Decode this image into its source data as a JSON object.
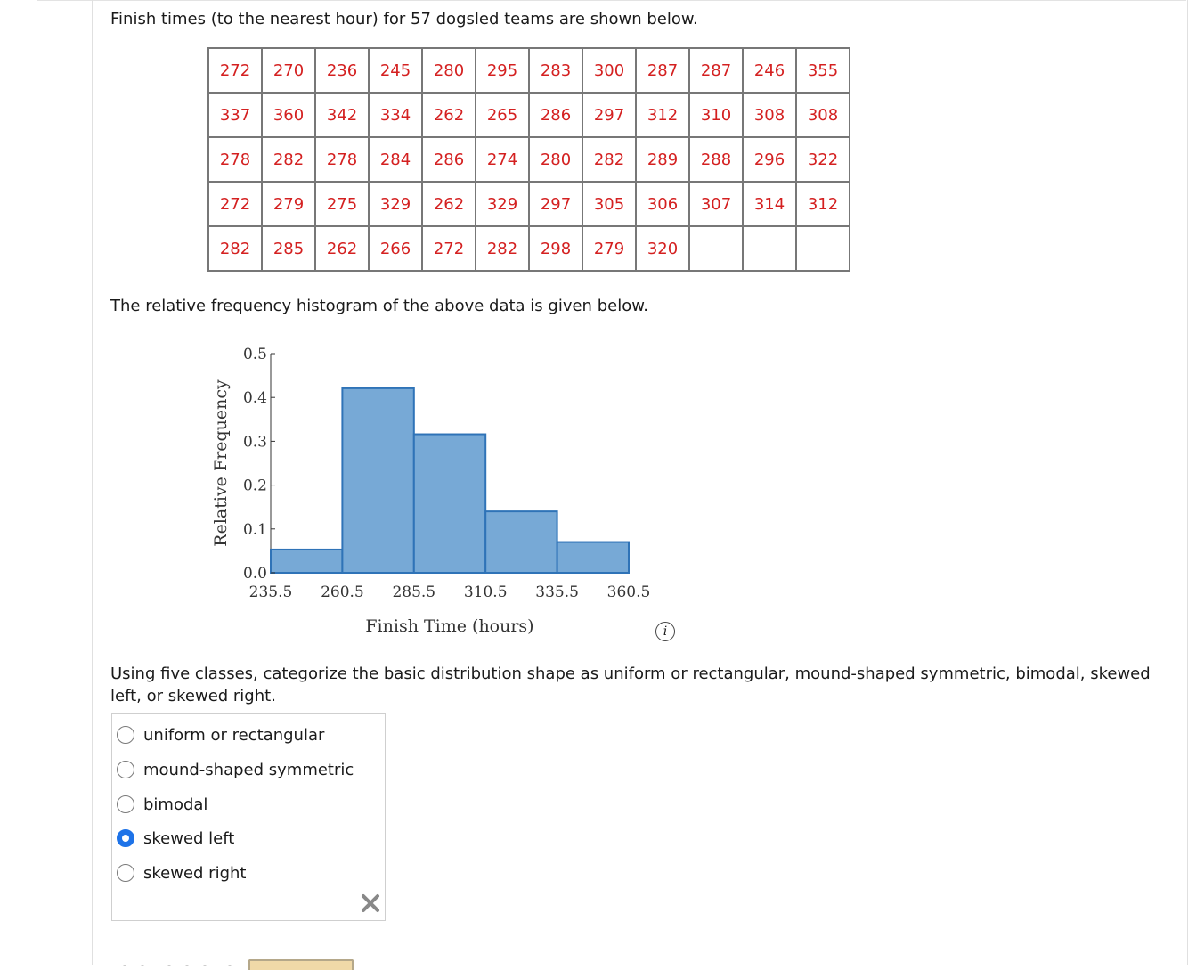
{
  "intro": "Finish times (to the nearest hour) for 57 dogsled teams are shown below.",
  "table_rows": [
    [
      "272",
      "270",
      "236",
      "245",
      "280",
      "295",
      "283",
      "300",
      "287",
      "287",
      "246",
      "355"
    ],
    [
      "337",
      "360",
      "342",
      "334",
      "262",
      "265",
      "286",
      "297",
      "312",
      "310",
      "308",
      "308"
    ],
    [
      "278",
      "282",
      "278",
      "284",
      "286",
      "274",
      "280",
      "282",
      "289",
      "288",
      "296",
      "322"
    ],
    [
      "272",
      "279",
      "275",
      "329",
      "262",
      "329",
      "297",
      "305",
      "306",
      "307",
      "314",
      "312"
    ],
    [
      "282",
      "285",
      "262",
      "266",
      "272",
      "282",
      "298",
      "279",
      "320",
      "",
      "",
      ""
    ]
  ],
  "hist_caption": "The relative frequency histogram of the above data is given below.",
  "chart_data": {
    "type": "bar",
    "bins": [
      [
        235.5,
        260.5
      ],
      [
        260.5,
        285.5
      ],
      [
        285.5,
        310.5
      ],
      [
        310.5,
        335.5
      ],
      [
        335.5,
        360.5
      ]
    ],
    "values": [
      0.053,
      0.421,
      0.316,
      0.14,
      0.07
    ],
    "xticks": [
      "235.5",
      "260.5",
      "285.5",
      "310.5",
      "335.5",
      "360.5"
    ],
    "yticks": [
      "0.0",
      "0.1",
      "0.2",
      "0.3",
      "0.4",
      "0.5"
    ],
    "xlabel": "Finish Time (hours)",
    "ylabel": "Relative Frequency",
    "ylim": [
      0,
      0.5
    ],
    "bar_color": "#77a9d6",
    "bar_edge": "#2f73b7"
  },
  "info_icon": "i",
  "question": "Using five classes, categorize the basic distribution shape as uniform or rectangular, mound-shaped symmetric, bimodal, skewed left, or skewed right.",
  "choices": [
    {
      "label": "uniform or rectangular",
      "selected": false
    },
    {
      "label": "mound-shaped symmetric",
      "selected": false
    },
    {
      "label": "bimodal",
      "selected": false
    },
    {
      "label": "skewed left",
      "selected": true
    },
    {
      "label": "skewed right",
      "selected": false
    }
  ],
  "result_icon": "x-mark-icon",
  "accent_color": "#1e73e8",
  "cell_text_color": "#d42020"
}
